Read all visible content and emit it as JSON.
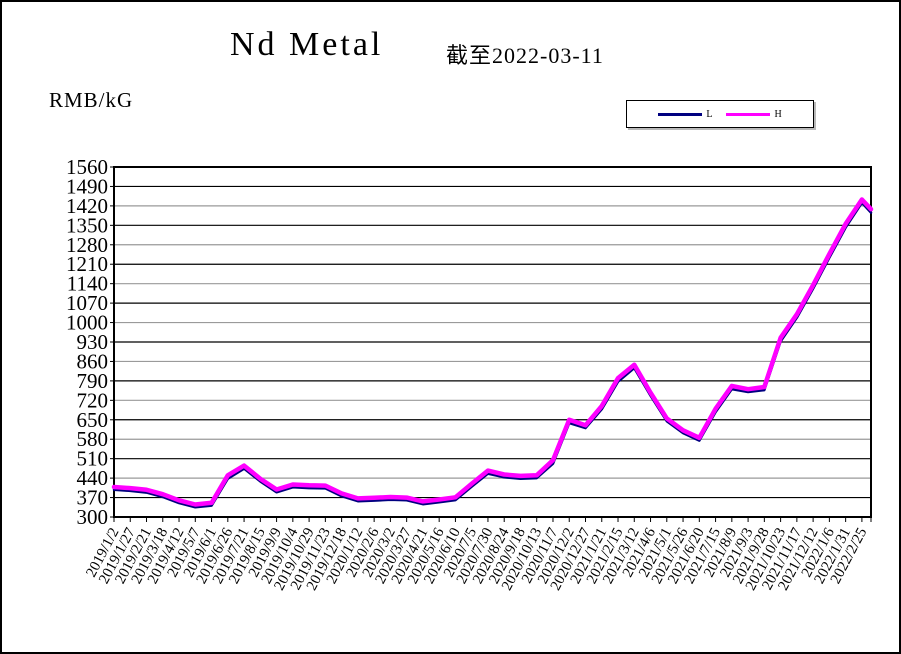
{
  "header": {
    "title": "Nd Metal",
    "subtitle": "截至2022-03-11",
    "unit": "RMB/kG"
  },
  "legend": {
    "position": "top-right",
    "items": [
      {
        "label": "L",
        "color": "#000080"
      },
      {
        "label": "H",
        "color": "#FF00FF"
      }
    ]
  },
  "chart_data": {
    "type": "line",
    "title": "Nd Metal",
    "subtitle": "截至2022-03-11",
    "ylabel": "RMB/kG",
    "xlabel": "",
    "ylim": [
      300,
      1560
    ],
    "ytick_step": 70,
    "yticks": [
      300,
      370,
      440,
      510,
      580,
      650,
      720,
      790,
      860,
      930,
      1000,
      1070,
      1140,
      1210,
      1280,
      1350,
      1420,
      1490,
      1560
    ],
    "grid": "horizontal gridlines every 70, alternating black and gray",
    "legend_position": "top-right",
    "x_label_interval_days": 25,
    "end_date": "2022/3/11",
    "categories": [
      "2019/1/2",
      "2019/1/27",
      "2019/2/21",
      "2019/3/18",
      "2019/4/12",
      "2019/5/7",
      "2019/6/1",
      "2019/6/26",
      "2019/7/21",
      "2019/8/15",
      "2019/9/9",
      "2019/10/4",
      "2019/10/29",
      "2019/11/23",
      "2019/12/18",
      "2020/1/12",
      "2020/2/6",
      "2020/3/2",
      "2020/3/27",
      "2020/4/21",
      "2020/5/16",
      "2020/6/10",
      "2020/7/5",
      "2020/7/30",
      "2020/8/24",
      "2020/9/18",
      "2020/10/13",
      "2020/11/7",
      "2020/12/2",
      "2020/12/27",
      "2021/1/21",
      "2021/2/15",
      "2021/3/12",
      "2021/4/6",
      "2021/5/1",
      "2021/5/26",
      "2021/6/20",
      "2021/7/15",
      "2021/8/9",
      "2021/9/3",
      "2021/9/28",
      "2021/10/23",
      "2021/11/17",
      "2021/12/12",
      "2022/1/6",
      "2022/1/31",
      "2022/2/25"
    ],
    "series": [
      {
        "name": "L",
        "color": "#000080",
        "values": [
          398,
          394,
          388,
          372,
          350,
          335,
          341,
          438,
          474,
          428,
          389,
          407,
          404,
          403,
          375,
          357,
          359,
          362,
          360,
          346,
          353,
          361,
          409,
          456,
          443,
          438,
          440,
          492,
          638,
          620,
          688,
          787,
          836,
          737,
          645,
          602,
          575,
          678,
          760,
          750,
          757,
          932,
          1018,
          1122,
          1234,
          1342,
          1431,
          1396
        ]
      },
      {
        "name": "H",
        "color": "#FF00FF",
        "values": [
          408,
          404,
          398,
          382,
          360,
          345,
          351,
          450,
          485,
          438,
          399,
          417,
          414,
          413,
          385,
          367,
          369,
          372,
          370,
          356,
          363,
          371,
          420,
          467,
          453,
          448,
          450,
          505,
          650,
          630,
          700,
          800,
          848,
          748,
          655,
          612,
          585,
          690,
          772,
          760,
          768,
          945,
          1030,
          1135,
          1247,
          1355,
          1443,
          1408
        ]
      }
    ],
    "note": "values arrays have one extra final point beyond the last labeled category, at end_date 2022/3/11"
  }
}
